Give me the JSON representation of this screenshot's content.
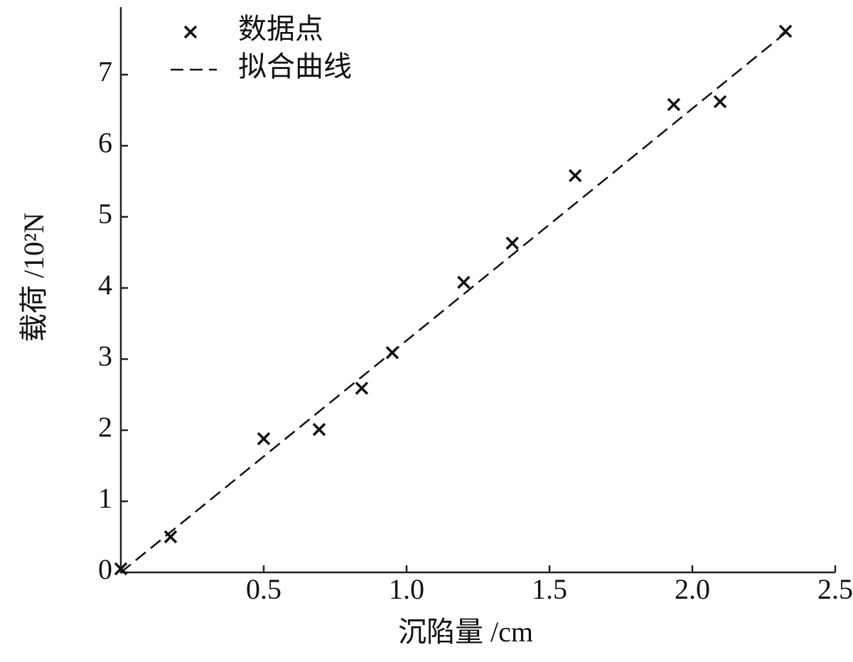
{
  "chart_data": {
    "type": "scatter",
    "xlabel": "沉陷量 /cm",
    "ylabel": "载荷 /10²N",
    "xlim": [
      0,
      2.5
    ],
    "ylim": [
      0,
      7.95
    ],
    "xticks": [
      0.5,
      {
        "value": 1,
        "label": "1.0"
      },
      1.5,
      {
        "value": 2,
        "label": "2.0"
      },
      2.5
    ],
    "yticks": [
      0,
      1,
      2,
      3,
      4,
      5,
      6,
      7
    ],
    "legend": "upper left",
    "series": [
      {
        "name": "数据点",
        "color": "#111111",
        "marker": "x",
        "x": [
          0,
          0.174,
          0.5,
          0.694,
          0.843,
          0.95,
          1.2,
          1.37,
          1.59,
          1.935,
          2.097,
          2.326
        ],
        "values": [
          0.05,
          0.5,
          1.88,
          2.01,
          2.59,
          3.09,
          4.08,
          4.63,
          5.58,
          6.58,
          6.62,
          7.61
        ]
      },
      {
        "name": "拟合曲线",
        "color": "#111111",
        "line": "dashed",
        "x": [
          0,
          2.33
        ],
        "values": [
          0,
          7.6
        ]
      }
    ]
  }
}
